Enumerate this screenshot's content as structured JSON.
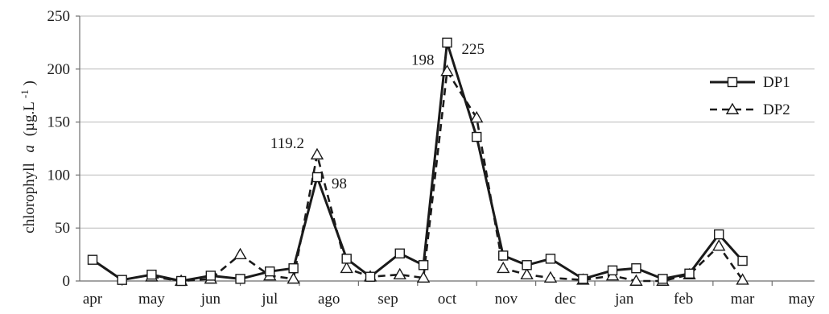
{
  "chart_data": {
    "type": "line",
    "x_labels": [
      "apr",
      "may",
      "jun",
      "jul",
      "ago",
      "sep",
      "oct",
      "nov",
      "dec",
      "jan",
      "feb",
      "mar",
      "may"
    ],
    "x_range": [
      0,
      12
    ],
    "ylim": [
      0,
      250
    ],
    "yticks": [
      0,
      50,
      100,
      150,
      200,
      250
    ],
    "ylabel_prefix": "chlorophyll",
    "ylabel_italic": "a",
    "ylabel_unit": "(µg.L",
    "ylabel_sup": "-1",
    "ylabel_close": ")",
    "grid": "horizontal",
    "legend_position": "top-right",
    "series": [
      {
        "name": "DP1",
        "line_style": "solid",
        "marker": "square",
        "color": "#1a1a1a",
        "points": [
          [
            0,
            20
          ],
          [
            0.5,
            1
          ],
          [
            1,
            6
          ],
          [
            1.5,
            0
          ],
          [
            2,
            5
          ],
          [
            2.5,
            2
          ],
          [
            3,
            9
          ],
          [
            3.4,
            12
          ],
          [
            3.8,
            98
          ],
          [
            4.3,
            21
          ],
          [
            4.7,
            4
          ],
          [
            5.2,
            26
          ],
          [
            5.6,
            15
          ],
          [
            6,
            225
          ],
          [
            6.5,
            136
          ],
          [
            6.95,
            24
          ],
          [
            7.35,
            15
          ],
          [
            7.75,
            21
          ],
          [
            8.3,
            2
          ],
          [
            8.8,
            10
          ],
          [
            9.2,
            12
          ],
          [
            9.65,
            2
          ],
          [
            10.1,
            7
          ],
          [
            10.6,
            44
          ],
          [
            11,
            19
          ]
        ]
      },
      {
        "name": "DP2",
        "line_style": "dashed",
        "marker": "triangle",
        "color": "#1a1a1a",
        "points": [
          [
            1,
            4
          ],
          [
            1.5,
            0
          ],
          [
            2,
            2
          ],
          [
            2.5,
            25
          ],
          [
            3,
            5
          ],
          [
            3.4,
            2
          ],
          [
            3.8,
            119.2
          ],
          [
            4.3,
            12
          ],
          [
            4.7,
            4
          ],
          [
            5.2,
            6
          ],
          [
            5.6,
            3
          ],
          [
            6,
            198
          ],
          [
            6.5,
            154
          ],
          [
            6.95,
            12
          ],
          [
            7.35,
            6
          ],
          [
            7.75,
            3
          ],
          [
            8.3,
            1
          ],
          [
            8.8,
            5
          ],
          [
            9.2,
            0
          ],
          [
            9.65,
            0
          ],
          [
            10.1,
            6
          ],
          [
            10.6,
            33
          ],
          [
            11,
            1
          ]
        ]
      }
    ],
    "annotations": [
      {
        "text": "119.2",
        "x": 3.8,
        "y": 119.2,
        "anchor": "end"
      },
      {
        "text": "98",
        "x": 3.8,
        "y": 98,
        "anchor": "start"
      },
      {
        "text": "198",
        "x": 6,
        "y": 198,
        "anchor": "end"
      },
      {
        "text": "225",
        "x": 6,
        "y": 225,
        "anchor": "start"
      }
    ]
  }
}
